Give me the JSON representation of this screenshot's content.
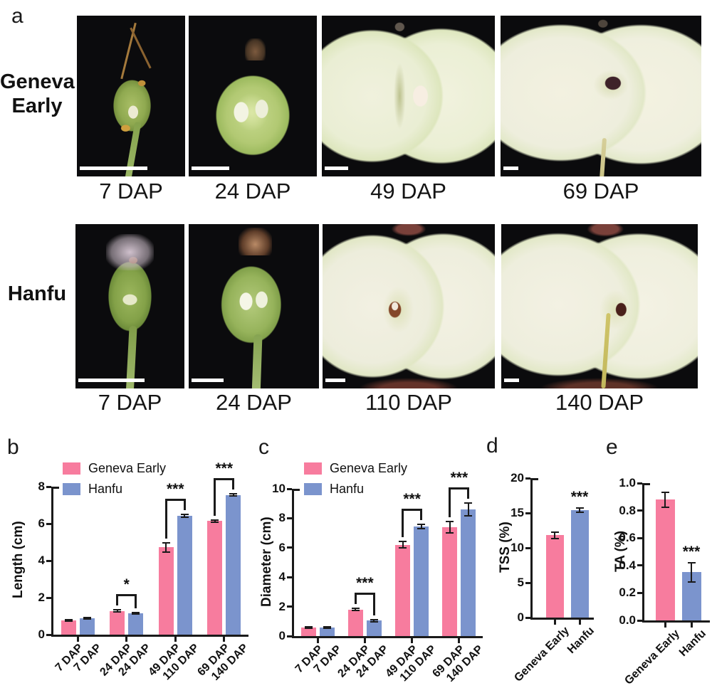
{
  "panel_letters": {
    "a": "a",
    "b": "b",
    "c": "c",
    "d": "d",
    "e": "e"
  },
  "colors": {
    "geneva_early": "#F77C9E",
    "hanfu": "#7B94CD",
    "axis": "#1A1A1A",
    "text": "#111111",
    "photo_background": "#0B0B0D",
    "scale_bar": "#FFFFFF"
  },
  "panel_a": {
    "rows": [
      {
        "label": "Geneva Early",
        "label_lines": [
          "Geneva",
          "Early"
        ],
        "photo_captions": [
          "7 DAP",
          "24 DAP",
          "49 DAP",
          "69 DAP"
        ]
      },
      {
        "label": "Hanfu",
        "label_lines": [
          "Hanfu"
        ],
        "photo_captions": [
          "7 DAP",
          "24 DAP",
          "110 DAP",
          "140 DAP"
        ]
      }
    ]
  },
  "chart_data": [
    {
      "panel": "b",
      "type": "bar",
      "ylabel": "Length (cm)",
      "ylim": [
        0,
        8
      ],
      "yticks": [
        "0",
        "2",
        "4",
        "6",
        "8"
      ],
      "categories": [
        "7 DAP",
        "7 DAP",
        "24 DAP",
        "24 DAP",
        "49 DAP",
        "110 DAP",
        "69 DAP",
        "140 DAP"
      ],
      "series": [
        "Geneva Early",
        "Hanfu"
      ],
      "values": [
        0.78,
        0.9,
        1.28,
        1.15,
        4.72,
        6.42,
        6.15,
        7.55
      ],
      "errors": [
        0.04,
        0.04,
        0.05,
        0.05,
        0.25,
        0.07,
        0.06,
        0.06
      ],
      "legend": [
        "Geneva Early",
        "Hanfu"
      ],
      "legend_position": "top-left",
      "grid": false,
      "significance": [
        {
          "bars": [
            2,
            3
          ],
          "label": "*"
        },
        {
          "bars": [
            4,
            5
          ],
          "label": "***"
        },
        {
          "bars": [
            6,
            7
          ],
          "label": "***"
        }
      ]
    },
    {
      "panel": "c",
      "type": "bar",
      "ylabel": "Diameter (cm)",
      "ylim": [
        0,
        10
      ],
      "yticks": [
        "0",
        "2",
        "4",
        "6",
        "8",
        "10"
      ],
      "categories": [
        "7 DAP",
        "7 DAP",
        "24 DAP",
        "24 DAP",
        "49 DAP",
        "110 DAP",
        "69 DAP",
        "140 DAP"
      ],
      "series": [
        "Geneva Early",
        "Hanfu"
      ],
      "values": [
        0.58,
        0.58,
        1.8,
        1.05,
        6.2,
        7.45,
        7.4,
        8.6
      ],
      "errors": [
        0.04,
        0.04,
        0.08,
        0.06,
        0.22,
        0.15,
        0.38,
        0.42
      ],
      "legend": [
        "Geneva Early",
        "Hanfu"
      ],
      "legend_position": "top-left",
      "grid": false,
      "significance": [
        {
          "bars": [
            2,
            3
          ],
          "label": "***"
        },
        {
          "bars": [
            4,
            5
          ],
          "label": "***"
        },
        {
          "bars": [
            6,
            7
          ],
          "label": "***"
        }
      ]
    },
    {
      "panel": "d",
      "type": "bar",
      "ylabel": "TSS (%)",
      "ylim": [
        0,
        20
      ],
      "yticks": [
        "0",
        "5",
        "10",
        "15",
        "20"
      ],
      "categories": [
        "Geneva Early",
        "Hanfu"
      ],
      "series": [
        "Geneva Early",
        "Hanfu"
      ],
      "values": [
        11.8,
        15.4
      ],
      "errors": [
        0.45,
        0.28
      ],
      "grid": false,
      "significance": [
        {
          "bar": 1,
          "label": "***"
        }
      ]
    },
    {
      "panel": "e",
      "type": "bar",
      "ylabel": "TA (%)",
      "ylim": [
        0,
        1.0
      ],
      "yticks": [
        "0.0",
        "0.2",
        "0.4",
        "0.6",
        "0.8",
        "1.0"
      ],
      "categories": [
        "Geneva Early",
        "Hanfu"
      ],
      "series": [
        "Geneva Early",
        "Hanfu"
      ],
      "values": [
        0.88,
        0.35
      ],
      "errors": [
        0.055,
        0.07
      ],
      "grid": false,
      "significance": [
        {
          "bar": 1,
          "label": "***"
        }
      ]
    }
  ]
}
